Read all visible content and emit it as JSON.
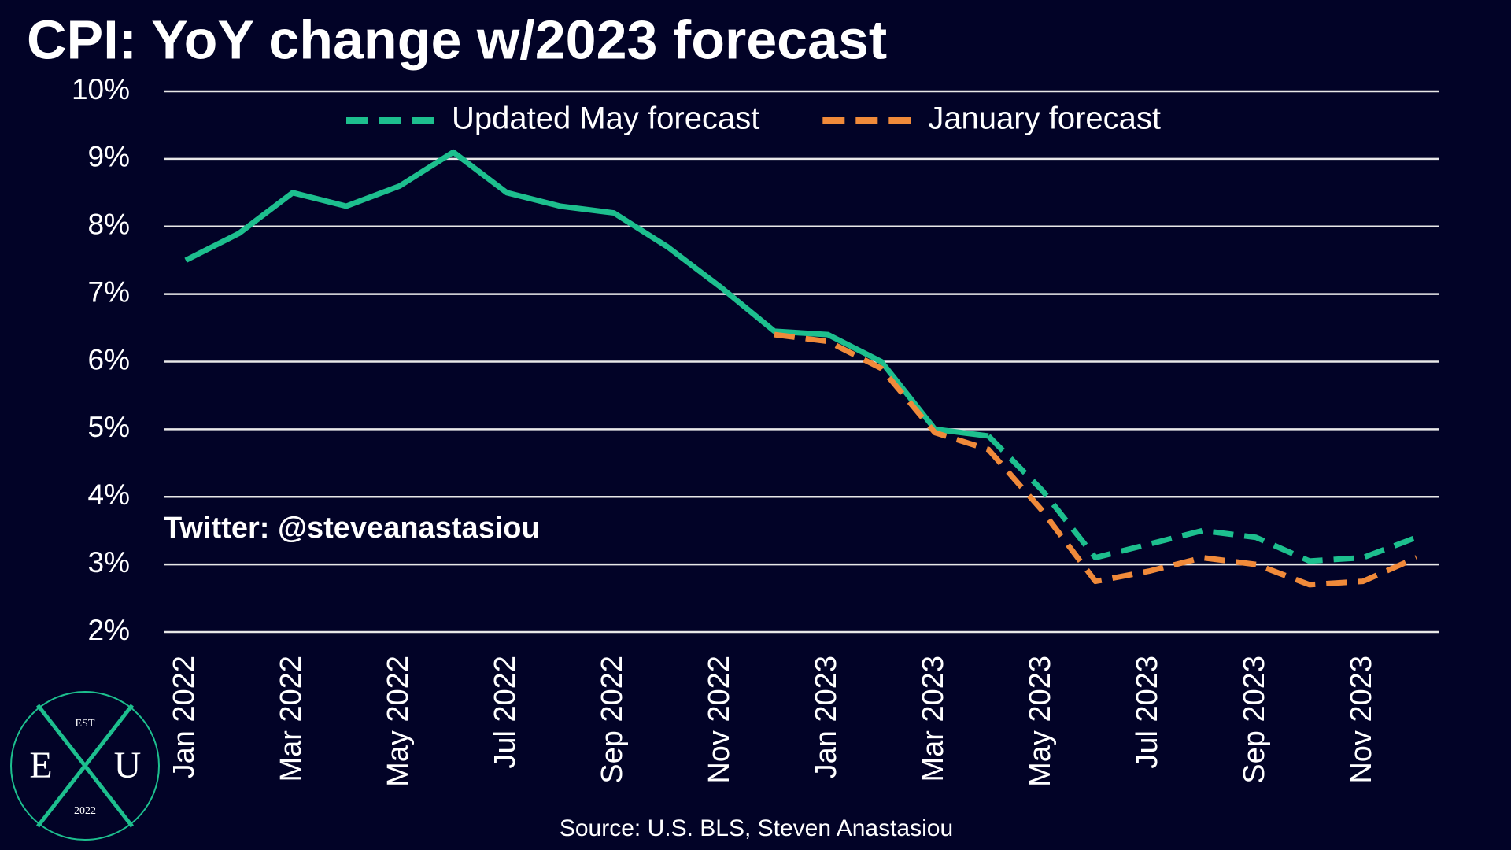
{
  "chart_data": {
    "type": "line",
    "title": "CPI: YoY change w/2023 forecast",
    "annotation": "Twitter: @steveanastasiou",
    "source": "Source: U.S. BLS, Steven Anastasiou",
    "logo": {
      "top": "EST",
      "left": "E",
      "right": "U",
      "bottom": "2022"
    },
    "categories": [
      "Jan 2022",
      null,
      "Mar 2022",
      null,
      "May 2022",
      null,
      "Jul 2022",
      null,
      "Sep 2022",
      null,
      "Nov 2022",
      null,
      "Jan 2023",
      null,
      "Mar 2023",
      null,
      "May 2023",
      null,
      "Jul 2023",
      null,
      "Sep 2023",
      null,
      "Nov 2023",
      null
    ],
    "series": [
      {
        "color": "#1dbf8e",
        "dashed": false,
        "values": [
          7.5,
          7.9,
          8.5,
          8.3,
          8.6,
          9.1,
          8.5,
          8.3,
          8.2,
          7.7,
          7.1,
          6.45,
          6.4,
          6.0,
          5.0,
          4.9,
          null,
          null,
          null,
          null,
          null,
          null,
          null,
          null
        ]
      },
      {
        "name": "Updated May forecast",
        "color": "#1dbf8e",
        "dashed": true,
        "values": [
          null,
          null,
          null,
          null,
          null,
          null,
          null,
          null,
          null,
          null,
          null,
          null,
          null,
          null,
          null,
          4.9,
          4.1,
          3.1,
          3.3,
          3.5,
          3.4,
          3.05,
          3.1,
          3.4
        ]
      },
      {
        "name": "January forecast",
        "color": "#f08a3a",
        "dashed": true,
        "values": [
          null,
          null,
          null,
          null,
          null,
          null,
          null,
          null,
          null,
          null,
          null,
          6.4,
          6.3,
          5.9,
          4.95,
          4.7,
          3.8,
          2.75,
          2.9,
          3.1,
          3.0,
          2.7,
          2.75,
          3.1
        ]
      }
    ],
    "ylim": [
      2,
      10
    ],
    "yticks": [
      {
        "value": 2,
        "label": "2%"
      },
      {
        "value": 3,
        "label": "3%"
      },
      {
        "value": 4,
        "label": "4%"
      },
      {
        "value": 5,
        "label": "5%"
      },
      {
        "value": 6,
        "label": "6%"
      },
      {
        "value": 7,
        "label": "7%"
      },
      {
        "value": 8,
        "label": "8%"
      },
      {
        "value": 9,
        "label": "9%"
      },
      {
        "value": 10,
        "label": "10%"
      }
    ],
    "grid": true,
    "legend": "top"
  }
}
